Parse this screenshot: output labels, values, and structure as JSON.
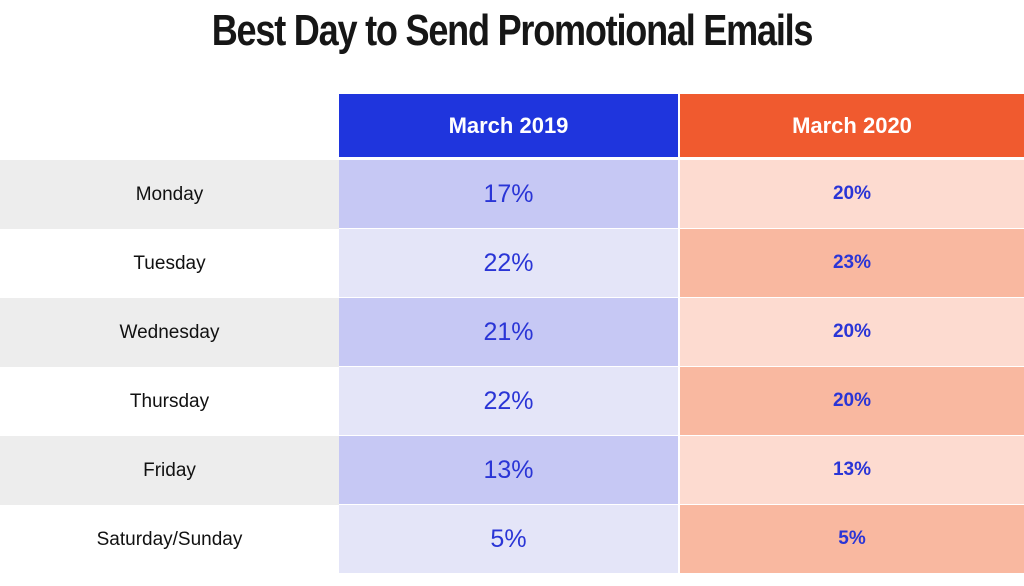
{
  "title": "Best Day to Send Promotional Emails",
  "colors": {
    "header_2019": "#1f35dd",
    "header_2020": "#f05a2f",
    "cell_2019_dark": "#c6c8f4",
    "cell_2019_light": "#e4e5f8",
    "cell_2020_light": "#fddbd0",
    "cell_2020_dark": "#f9b8a0",
    "value_text": "#2a35d6"
  },
  "chart_data": {
    "type": "table",
    "title": "Best Day to Send Promotional Emails",
    "columns": [
      "",
      "March 2019",
      "March 2020"
    ],
    "categories": [
      "Monday",
      "Tuesday",
      "Wednesday",
      "Thursday",
      "Friday",
      "Saturday/Sunday"
    ],
    "series": [
      {
        "name": "March 2019",
        "values": [
          17,
          22,
          21,
          22,
          13,
          5
        ],
        "labels": [
          "17%",
          "22%",
          "21%",
          "22%",
          "13%",
          "5%"
        ]
      },
      {
        "name": "March 2020",
        "values": [
          20,
          23,
          20,
          20,
          13,
          5
        ],
        "labels": [
          "20%",
          "23%",
          "20%",
          "20%",
          "13%",
          "5%"
        ]
      }
    ]
  }
}
